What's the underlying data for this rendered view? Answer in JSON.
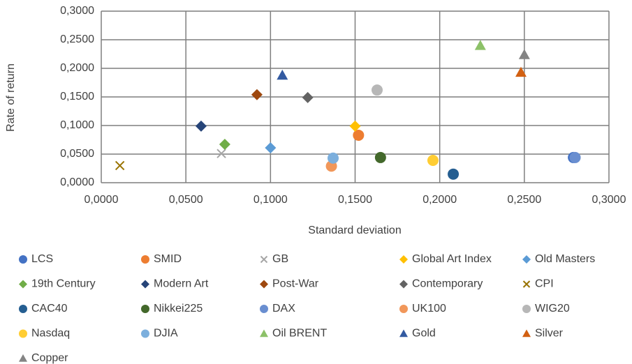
{
  "chart_data": {
    "type": "scatter",
    "x_label": "Standard deviation",
    "y_label": "Rate of return",
    "xlim": [
      0,
      0.3
    ],
    "ylim": [
      0,
      0.3
    ],
    "xticks": [
      {
        "value": 0,
        "label": "0,0000"
      },
      {
        "value": 0.05,
        "label": "0,0500"
      },
      {
        "value": 0.1,
        "label": "0,1000"
      },
      {
        "value": 0.15,
        "label": "0,1500"
      },
      {
        "value": 0.2,
        "label": "0,2000"
      },
      {
        "value": 0.25,
        "label": "0,2500"
      },
      {
        "value": 0.3,
        "label": "0,3000"
      }
    ],
    "yticks": [
      {
        "value": 0,
        "label": "0,0000"
      },
      {
        "value": 0.05,
        "label": "0,0500"
      },
      {
        "value": 0.1,
        "label": "0,1000"
      },
      {
        "value": 0.15,
        "label": "0,1500"
      },
      {
        "value": 0.2,
        "label": "0,2000"
      },
      {
        "value": 0.25,
        "label": "0,2500"
      },
      {
        "value": 0.3,
        "label": "0,3000"
      }
    ],
    "grid": true,
    "legend": "bottom",
    "series": [
      {
        "name": "LCS",
        "color": "#4472c4",
        "marker": "circle",
        "x": [
          0.279
        ],
        "values": [
          0.044
        ]
      },
      {
        "name": "SMID",
        "color": "#ed7d31",
        "marker": "circle",
        "x": [
          0.152
        ],
        "values": [
          0.083
        ]
      },
      {
        "name": "GB",
        "color": "#a5a5a5",
        "marker": "x",
        "x": [
          0.071
        ],
        "values": [
          0.051
        ]
      },
      {
        "name": "Global Art Index",
        "color": "#ffc000",
        "marker": "diamond",
        "x": [
          0.15
        ],
        "values": [
          0.099
        ]
      },
      {
        "name": "Old Masters",
        "color": "#5b9bd5",
        "marker": "diamond",
        "x": [
          0.1
        ],
        "values": [
          0.061
        ]
      },
      {
        "name": "19th Century",
        "color": "#70ad47",
        "marker": "diamond",
        "x": [
          0.073
        ],
        "values": [
          0.067
        ]
      },
      {
        "name": "Modern Art",
        "color": "#264478",
        "marker": "diamond",
        "x": [
          0.059
        ],
        "values": [
          0.099
        ]
      },
      {
        "name": "Post-War",
        "color": "#9e480e",
        "marker": "diamond",
        "x": [
          0.092
        ],
        "values": [
          0.154
        ]
      },
      {
        "name": "Contemporary",
        "color": "#636363",
        "marker": "diamond",
        "x": [
          0.122
        ],
        "values": [
          0.149
        ]
      },
      {
        "name": "CPI",
        "color": "#997300",
        "marker": "x",
        "x": [
          0.011
        ],
        "values": [
          0.03
        ]
      },
      {
        "name": "CAC40",
        "color": "#255e91",
        "marker": "circle",
        "x": [
          0.208
        ],
        "values": [
          0.015
        ]
      },
      {
        "name": "Nikkei225",
        "color": "#43682b",
        "marker": "circle",
        "x": [
          0.165
        ],
        "values": [
          0.044
        ]
      },
      {
        "name": "DAX",
        "color": "#698ed0",
        "marker": "circle",
        "x": [
          0.28
        ],
        "values": [
          0.044
        ]
      },
      {
        "name": "UK100",
        "color": "#f1975a",
        "marker": "circle",
        "x": [
          0.136
        ],
        "values": [
          0.029
        ]
      },
      {
        "name": "WIG20",
        "color": "#b7b7b7",
        "marker": "circle",
        "x": [
          0.163
        ],
        "values": [
          0.162
        ]
      },
      {
        "name": "Nasdaq",
        "color": "#ffcd33",
        "marker": "circle",
        "x": [
          0.196
        ],
        "values": [
          0.039
        ]
      },
      {
        "name": "DJIA",
        "color": "#7cafdd",
        "marker": "circle",
        "x": [
          0.137
        ],
        "values": [
          0.043
        ]
      },
      {
        "name": "Oil BRENT",
        "color": "#8cc168",
        "marker": "triangle",
        "x": [
          0.224
        ],
        "values": [
          0.24
        ]
      },
      {
        "name": "Gold",
        "color": "#335aa1",
        "marker": "triangle",
        "x": [
          0.107
        ],
        "values": [
          0.188
        ]
      },
      {
        "name": "Silver",
        "color": "#d26012",
        "marker": "triangle",
        "x": [
          0.248
        ],
        "values": [
          0.193
        ]
      },
      {
        "name": "Copper",
        "color": "#848484",
        "marker": "triangle",
        "x": [
          0.25
        ],
        "values": [
          0.224
        ]
      }
    ]
  }
}
